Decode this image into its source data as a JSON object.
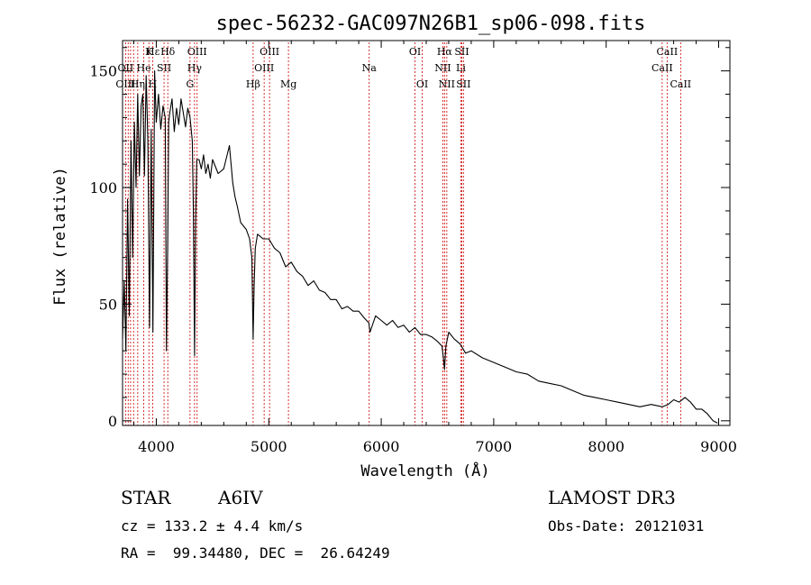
{
  "chart_data": {
    "type": "line",
    "title": "spec-56232-GAC097N26B1_sp06-098.fits",
    "xlabel": "Wavelength (Å)",
    "ylabel": "Flux (relative)",
    "xlim": [
      3700,
      9100
    ],
    "ylim": [
      -2,
      163
    ],
    "xticks": [
      4000,
      5000,
      6000,
      7000,
      8000,
      9000
    ],
    "yticks": [
      0,
      50,
      100,
      150
    ],
    "grid": false,
    "series": [
      {
        "name": "flux",
        "x": [
          3700,
          3715,
          3730,
          3745,
          3760,
          3775,
          3790,
          3805,
          3820,
          3835,
          3850,
          3865,
          3880,
          3895,
          3910,
          3925,
          3940,
          3955,
          3970,
          3985,
          4000,
          4020,
          4040,
          4060,
          4080,
          4090,
          4101,
          4110,
          4120,
          4140,
          4160,
          4180,
          4200,
          4220,
          4240,
          4260,
          4280,
          4300,
          4320,
          4330,
          4340,
          4350,
          4360,
          4380,
          4400,
          4420,
          4440,
          4460,
          4480,
          4500,
          4550,
          4600,
          4650,
          4680,
          4700,
          4720,
          4750,
          4800,
          4830,
          4850,
          4861,
          4870,
          4880,
          4900,
          4950,
          5000,
          5050,
          5100,
          5150,
          5200,
          5250,
          5300,
          5350,
          5400,
          5450,
          5500,
          5550,
          5600,
          5650,
          5700,
          5750,
          5800,
          5850,
          5890,
          5900,
          5950,
          6000,
          6050,
          6100,
          6150,
          6200,
          6250,
          6300,
          6350,
          6400,
          6450,
          6500,
          6540,
          6555,
          6563,
          6575,
          6600,
          6650,
          6700,
          6750,
          6800,
          6900,
          7000,
          7100,
          7200,
          7300,
          7400,
          7500,
          7600,
          7700,
          7800,
          7900,
          8000,
          8100,
          8200,
          8300,
          8400,
          8500,
          8550,
          8600,
          8650,
          8700,
          8750,
          8800,
          8850,
          8900,
          8950,
          8990
        ],
        "values": [
          35,
          60,
          30,
          95,
          45,
          120,
          70,
          128,
          100,
          140,
          105,
          135,
          140,
          105,
          148,
          120,
          40,
          125,
          38,
          150,
          128,
          140,
          125,
          135,
          130,
          30,
          75,
          128,
          132,
          138,
          124,
          134,
          127,
          138,
          132,
          126,
          134,
          130,
          120,
          90,
          28,
          85,
          112,
          112,
          108,
          114,
          106,
          110,
          104,
          112,
          106,
          108,
          118,
          102,
          96,
          92,
          85,
          82,
          78,
          70,
          35,
          58,
          74,
          80,
          78,
          78,
          74,
          72,
          66,
          68,
          64,
          62,
          58,
          60,
          56,
          55,
          52,
          52,
          48,
          49,
          47,
          47,
          44,
          42,
          38,
          45,
          43,
          41,
          43,
          40,
          41,
          38,
          40,
          37,
          37,
          36,
          34,
          32,
          26,
          22,
          32,
          38,
          35,
          33,
          29,
          30,
          27,
          25,
          23,
          21,
          20,
          17,
          16,
          15,
          13,
          11,
          10,
          9,
          8,
          7,
          6,
          7,
          6,
          7,
          9,
          8,
          10,
          8,
          5,
          5,
          3,
          0,
          -1
        ]
      }
    ],
    "line_markers": [
      {
        "label": "Hε",
        "wave": 3970,
        "row": 0
      },
      {
        "label": "K",
        "wave": 3934,
        "row": 0
      },
      {
        "label": "Hδ",
        "wave": 4102,
        "row": 0
      },
      {
        "label": "OIII",
        "wave": 4363,
        "row": 0
      },
      {
        "label": "OIII",
        "wave": 5007,
        "row": 0
      },
      {
        "label": "OI",
        "wave": 6300,
        "row": 0
      },
      {
        "label": "Hα",
        "wave": 6563,
        "row": 0
      },
      {
        "label": "SII",
        "wave": 6716,
        "row": 0
      },
      {
        "label": "CaII",
        "wave": 8542,
        "row": 0
      },
      {
        "label": "OII",
        "wave": 3727,
        "row": 1
      },
      {
        "label": "He",
        "wave": 3889,
        "row": 1
      },
      {
        "label": "SII",
        "wave": 4069,
        "row": 1
      },
      {
        "label": "Hγ",
        "wave": 4340,
        "row": 1
      },
      {
        "label": "OIII",
        "wave": 4959,
        "row": 1
      },
      {
        "label": "Na",
        "wave": 5893,
        "row": 1
      },
      {
        "label": "NII",
        "wave": 6548,
        "row": 1
      },
      {
        "label": "Li",
        "wave": 6708,
        "row": 1
      },
      {
        "label": "CaII",
        "wave": 8498,
        "row": 1
      },
      {
        "label": "OIII",
        "wave": 3727,
        "row": 2
      },
      {
        "label": "Hη",
        "wave": 3835,
        "row": 2
      },
      {
        "label": "H",
        "wave": 3968,
        "row": 2
      },
      {
        "label": "G",
        "wave": 4300,
        "row": 2
      },
      {
        "label": "Hβ",
        "wave": 4861,
        "row": 2
      },
      {
        "label": "Mg",
        "wave": 5175,
        "row": 2
      },
      {
        "label": "OI",
        "wave": 6364,
        "row": 2
      },
      {
        "label": "NII",
        "wave": 6583,
        "row": 2
      },
      {
        "label": "SII",
        "wave": 6731,
        "row": 2
      },
      {
        "label": "CaII",
        "wave": 8662,
        "row": 2
      }
    ],
    "marker_lines": [
      3727,
      3750,
      3771,
      3798,
      3835,
      3889,
      3934,
      3968,
      4069,
      4102,
      4300,
      4340,
      4363,
      4861,
      4959,
      5007,
      5175,
      5893,
      6300,
      6364,
      6548,
      6563,
      6583,
      6708,
      6716,
      6731,
      8498,
      8542,
      8662
    ],
    "marker_color": "#cc0000",
    "line_color": "#000000"
  },
  "info": {
    "object_class": "STAR",
    "subclass": "A6IV",
    "survey": "LAMOST DR3",
    "redshift": "cz = 133.2 ± 4.4 km/s",
    "obs_date": "Obs-Date: 20121031",
    "coords": "RA =  99.34480, DEC =  26.64249"
  }
}
